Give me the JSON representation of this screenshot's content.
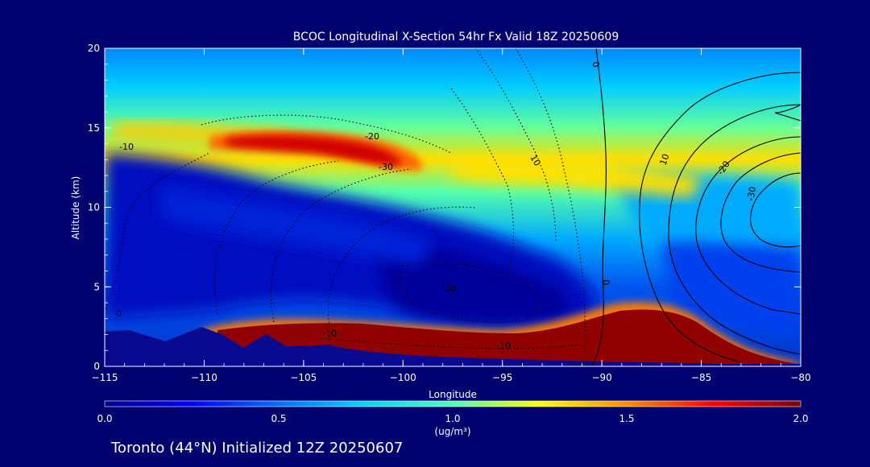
{
  "chart_data": {
    "type": "heatmap",
    "title": "BCOC Longitudinal X-Section 54hr  Fx Valid 18Z 20250609",
    "xlabel": "Longitude",
    "ylabel": "Altitude (km)",
    "xlim": [
      -115,
      -80
    ],
    "ylim": [
      0,
      20
    ],
    "x_ticks": [
      "-115",
      "-110",
      "-105",
      "-100",
      "-95",
      "-90",
      "-85",
      "-80"
    ],
    "y_ticks": [
      "0",
      "5",
      "10",
      "15",
      "20"
    ],
    "colorbar": {
      "label": "(ug/m³)",
      "range": [
        0,
        2.0
      ],
      "ticks": [
        "0.0",
        "0.5",
        "1.0",
        "1.5",
        "2.0"
      ]
    },
    "contour_labels": [
      "-10",
      "-20",
      "-30",
      "-10",
      "0",
      "10",
      "-20",
      "-10",
      "0",
      "10",
      "-20",
      "-30",
      "10",
      "0"
    ],
    "footer": "Toronto (44°N) Initialized 12Z 20250607",
    "colors": {
      "background": "#00006e",
      "frame": "#ffffff",
      "terrain": "#0a0a90",
      "contour": "#000000"
    },
    "colormap": [
      "#00008f",
      "#0000ff",
      "#0070ff",
      "#00d5ff",
      "#4dffb2",
      "#ffff00",
      "#ff8c00",
      "#ff0000",
      "#800000"
    ]
  }
}
